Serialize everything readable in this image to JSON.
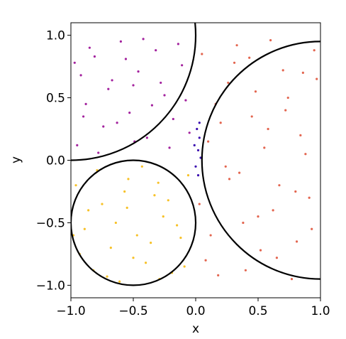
{
  "chart_data": {
    "type": "scatter",
    "xlabel": "x",
    "ylabel": "y",
    "xlim": [
      -1,
      1
    ],
    "ylim": [
      -1.1,
      1.1
    ],
    "xticks": [
      {
        "value": -1,
        "label": "−1.0"
      },
      {
        "value": -0.5,
        "label": "−0.5"
      },
      {
        "value": 0,
        "label": "0.0"
      },
      {
        "value": 0.5,
        "label": "0.5"
      },
      {
        "value": 1,
        "label": "1.0"
      }
    ],
    "yticks": [
      {
        "value": -1,
        "label": "−1.0"
      },
      {
        "value": -0.5,
        "label": "−0.5"
      },
      {
        "value": 0,
        "label": "0.0"
      },
      {
        "value": 0.5,
        "label": "0.5"
      },
      {
        "value": 1,
        "label": "1.0"
      }
    ],
    "series": [
      {
        "color": "#a3229e",
        "x": [
          -0.95,
          -0.88,
          -0.81,
          -0.74,
          -0.67,
          -0.6,
          -0.53,
          -0.46,
          -0.39,
          -0.32,
          -0.25,
          -0.18,
          -0.11,
          -0.05,
          -0.92,
          -0.85,
          -0.78,
          -0.7,
          -0.63,
          -0.56,
          -0.49,
          -0.42,
          -0.35,
          -0.28,
          -0.21,
          -0.14,
          -0.08,
          -0.97,
          -0.9,
          -0.5
        ],
        "values": [
          0.12,
          0.45,
          0.83,
          0.27,
          0.64,
          0.95,
          0.38,
          0.71,
          0.18,
          0.88,
          0.52,
          0.33,
          0.76,
          0.22,
          0.68,
          0.9,
          0.06,
          0.57,
          0.3,
          0.81,
          0.15,
          0.97,
          0.44,
          0.62,
          0.1,
          0.93,
          0.48,
          0.78,
          0.35,
          0.6
        ]
      },
      {
        "color": "#e3654f",
        "x": [
          0.05,
          0.12,
          0.2,
          0.27,
          0.33,
          0.4,
          0.48,
          0.55,
          0.62,
          0.7,
          0.77,
          0.84,
          0.91,
          0.97,
          0.08,
          0.16,
          0.24,
          0.31,
          0.38,
          0.45,
          0.52,
          0.6,
          0.67,
          0.74,
          0.81,
          0.88,
          0.95,
          0.03,
          0.1,
          0.18,
          0.26,
          0.35,
          0.43,
          0.5,
          0.58,
          0.65,
          0.72,
          0.8,
          0.86,
          0.93
        ],
        "values": [
          0.85,
          -0.6,
          0.3,
          -0.15,
          0.92,
          -0.88,
          0.55,
          0.1,
          -0.4,
          0.72,
          -0.95,
          0.2,
          -0.3,
          0.65,
          -0.8,
          0.45,
          -0.05,
          0.78,
          -0.5,
          0.35,
          -0.72,
          0.96,
          -0.2,
          0.5,
          -0.65,
          0.05,
          0.88,
          -0.35,
          0.15,
          -0.92,
          0.62,
          -0.1,
          0.82,
          -0.45,
          0.25,
          -0.78,
          0.4,
          -0.25,
          0.7,
          -0.55
        ]
      },
      {
        "color": "#f7c127",
        "x": [
          -0.96,
          -0.89,
          -0.82,
          -0.75,
          -0.68,
          -0.61,
          -0.54,
          -0.47,
          -0.4,
          -0.33,
          -0.26,
          -0.19,
          -0.12,
          -0.06,
          -0.93,
          -0.86,
          -0.79,
          -0.71,
          -0.64,
          -0.57,
          -0.5,
          -0.43,
          -0.36,
          -0.29,
          -0.22,
          -0.15,
          -0.09,
          -0.98,
          -0.55,
          -0.3
        ],
        "values": [
          -0.2,
          -0.55,
          -0.88,
          -0.35,
          -0.7,
          -0.97,
          -0.15,
          -0.6,
          -0.82,
          -0.28,
          -0.45,
          -0.9,
          -0.62,
          -0.12,
          -0.75,
          -0.4,
          -0.08,
          -0.93,
          -0.5,
          -0.25,
          -0.78,
          -0.05,
          -0.66,
          -0.95,
          -0.32,
          -0.52,
          -0.85,
          -0.6,
          -0.38,
          -0.18
        ]
      },
      {
        "color": "#3b0fb0",
        "x": [
          0.01,
          0.03,
          0.02,
          0.04,
          0.0,
          0.02,
          -0.01,
          0.03
        ],
        "values": [
          0.25,
          0.18,
          0.08,
          0.02,
          -0.05,
          -0.12,
          0.12,
          0.3
        ]
      }
    ],
    "circles": [
      {
        "cx": -1,
        "cy": 1,
        "r": 1
      },
      {
        "cx": -0.5,
        "cy": -0.5,
        "r": 0.5
      },
      {
        "cx": 1,
        "cy": 0,
        "r": 0.95
      }
    ]
  }
}
